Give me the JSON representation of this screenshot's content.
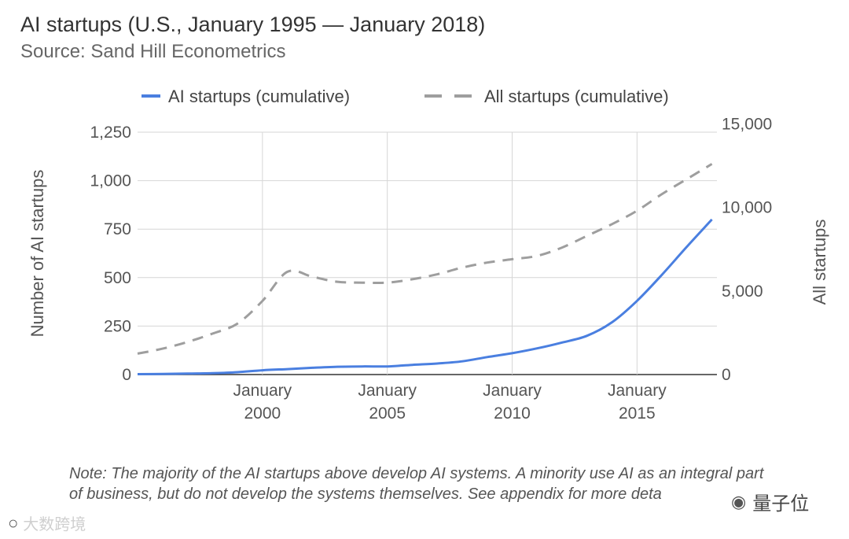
{
  "chart_data": {
    "type": "line",
    "title": "AI startups (U.S., January 1995 — January 2018)",
    "subtitle": "Source: Sand Hill Econometrics",
    "xlim": [
      1995,
      2018.2
    ],
    "x_ticks": [
      {
        "value": 2000,
        "line1": "January",
        "line2": "2000"
      },
      {
        "value": 2005,
        "line1": "January",
        "line2": "2005"
      },
      {
        "value": 2010,
        "line1": "January",
        "line2": "2010"
      },
      {
        "value": 2015,
        "line1": "January",
        "line2": "2015"
      }
    ],
    "ylabel_left": "Number of AI startups",
    "ylabel_right": "All startups",
    "ylim_left": [
      0,
      1250
    ],
    "ylim_right": [
      0,
      14500
    ],
    "yticks_left": [
      {
        "value": 0,
        "label": "0"
      },
      {
        "value": 250,
        "label": "250"
      },
      {
        "value": 500,
        "label": "500"
      },
      {
        "value": 750,
        "label": "750"
      },
      {
        "value": 1000,
        "label": "1,000"
      },
      {
        "value": 1250,
        "label": "1,250"
      }
    ],
    "yticks_right": [
      {
        "value": 0,
        "label": "0"
      },
      {
        "value": 5000,
        "label": "5,000"
      },
      {
        "value": 10000,
        "label": "10,000"
      },
      {
        "value": 15000,
        "label": "15,000"
      }
    ],
    "series": [
      {
        "name": "AI startups (cumulative)",
        "axis": "left",
        "color": "#4a7fe0",
        "dash": "none",
        "x": [
          1995,
          1996,
          1997,
          1998,
          1999,
          2000,
          2001,
          2002,
          2003,
          2004,
          2005,
          2006,
          2007,
          2008,
          2009,
          2010,
          2011,
          2012,
          2013,
          2014,
          2015,
          2016,
          2017,
          2018
        ],
        "y": [
          2,
          3,
          5,
          7,
          12,
          22,
          28,
          35,
          40,
          42,
          42,
          50,
          57,
          68,
          90,
          110,
          135,
          165,
          200,
          270,
          380,
          515,
          660,
          800
        ]
      },
      {
        "name": "All startups (cumulative)",
        "axis": "right",
        "color": "#9e9e9e",
        "dash": "14 10",
        "x": [
          1995,
          1996,
          1997,
          1998,
          1999,
          2000,
          2001,
          2002,
          2003,
          2004,
          2005,
          2006,
          2007,
          2008,
          2009,
          2010,
          2011,
          2012,
          2013,
          2014,
          2015,
          2016,
          2017,
          2018
        ],
        "y": [
          1250,
          1550,
          1950,
          2450,
          3050,
          4400,
          6150,
          5850,
          5550,
          5500,
          5500,
          5700,
          6000,
          6400,
          6700,
          6900,
          7100,
          7600,
          8300,
          9000,
          9800,
          10800,
          11700,
          12600
        ]
      }
    ]
  },
  "note": "Note: The majority of the AI startups above develop AI systems. A minority use AI as an integral part of business, but do not develop the systems themselves. See appendix for more deta",
  "watermarks": {
    "left_text": "大数跨境",
    "left_icon": "bubble-icon",
    "right_text": "量子位",
    "right_icon": "wechat-icon"
  }
}
